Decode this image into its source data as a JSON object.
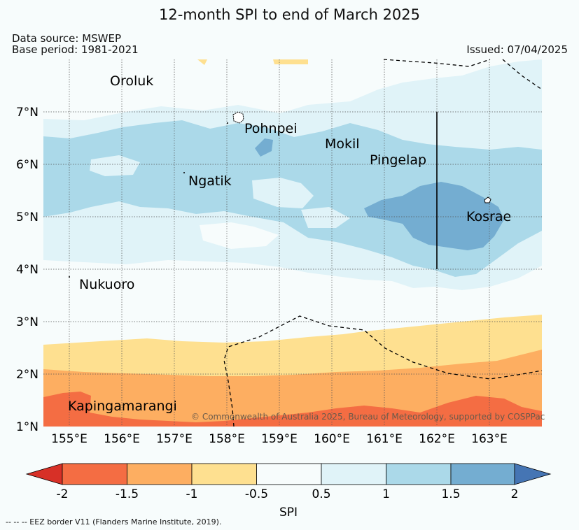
{
  "title": "12-month SPI to end of March 2025",
  "data_source": "Data source: MSWEP",
  "base_period": "Base period: 1981-2021",
  "issued": "Issued: 07/04/2025",
  "copyright": "© Commonwealth of Australia 2025, Bureau of Meteorology, supported by COSPPac",
  "footer_note": "-- -- -- EEZ border V11 (Flanders Marine Institute, 2019).",
  "map": {
    "lat_ticks": [
      "7°N",
      "6°N",
      "5°N",
      "4°N",
      "3°N",
      "2°N",
      "1°N"
    ],
    "lon_ticks": [
      "155°E",
      "156°E",
      "157°E",
      "158°E",
      "159°E",
      "160°E",
      "161°E",
      "162°E",
      "163°E"
    ],
    "places": [
      "Oroluk",
      "Pohnpei",
      "Mokil",
      "Pingelap",
      "Ngatik",
      "Kosrae",
      "Nukuoro",
      "Kapingamarangi"
    ]
  },
  "colorbar": {
    "title": "SPI",
    "tick_labels": [
      "-2",
      "-1.5",
      "-1",
      "-0.5",
      "0.5",
      "1",
      "1.5",
      "2"
    ],
    "colors": [
      "#d73027",
      "#f46d43",
      "#fdae61",
      "#fee090",
      "#f7fcfc",
      "#e0f3f8",
      "#abd9e9",
      "#74add1",
      "#4575b4"
    ]
  }
}
